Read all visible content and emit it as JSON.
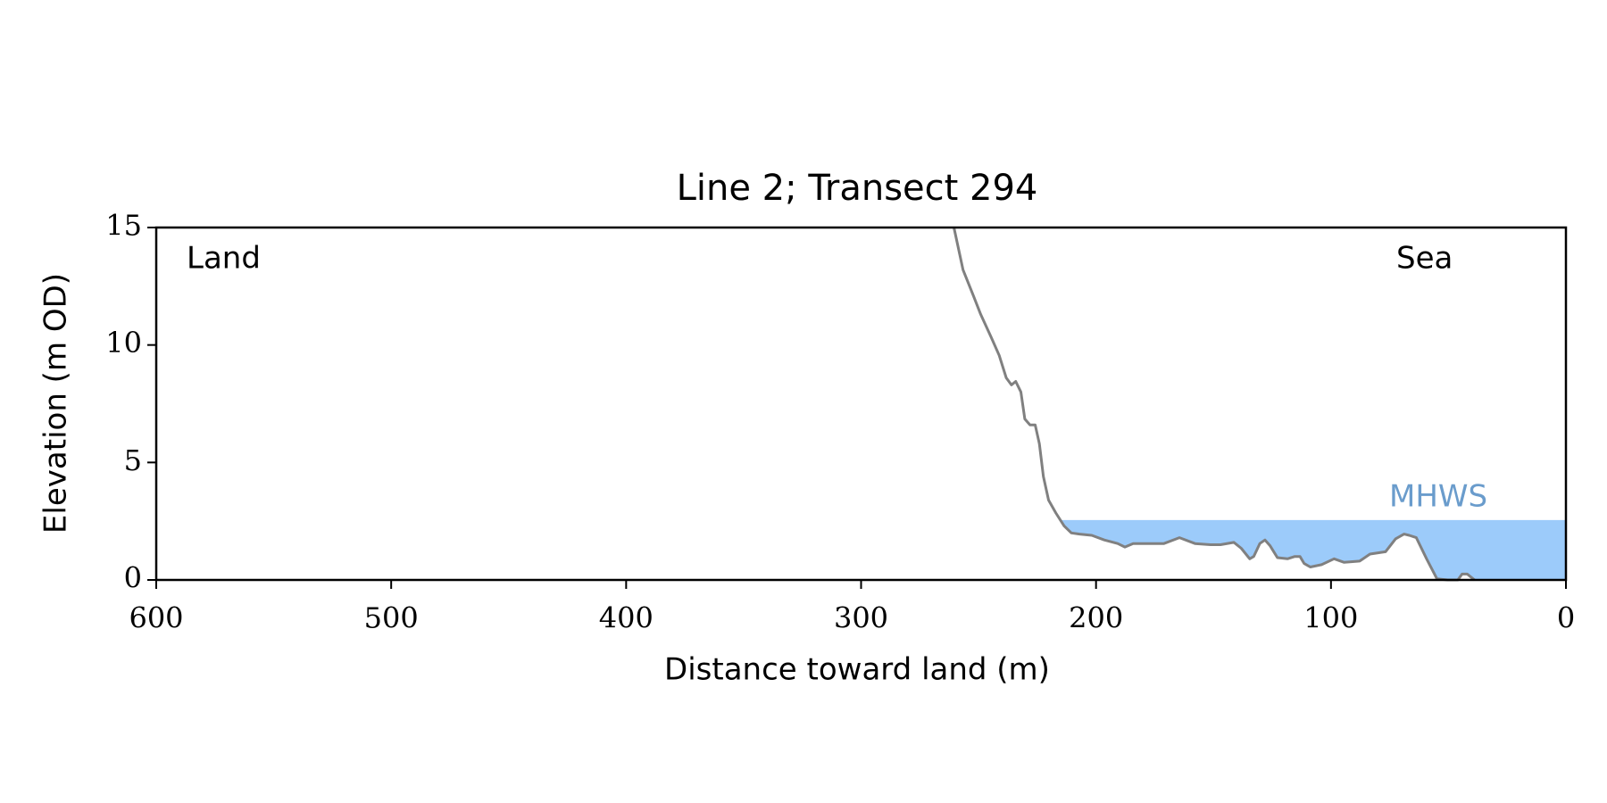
{
  "chart_data": {
    "type": "line",
    "title": "Line 2; Transect 294",
    "xlabel": "Distance toward land (m)",
    "ylabel": "Elevation (m OD)",
    "annotations": [
      "Land",
      "Sea"
    ],
    "mhws": 2.55,
    "mhws_label": "MHWS",
    "mhws_color": "#9ccbfa",
    "mhws_label_color": "#6a9ccc",
    "xlim": [
      600,
      0
    ],
    "ylim": [
      0,
      15
    ],
    "xticks": [
      600,
      500,
      400,
      300,
      200,
      100,
      0
    ],
    "yticks": [
      0,
      5,
      10,
      15
    ],
    "series": [
      {
        "color": "#808080",
        "x": [
          260.5,
          256.6,
          252.2,
          249.1,
          244.7,
          241.2,
          238.2,
          236.0,
          234.2,
          232.0,
          230.3,
          228.1,
          225.9,
          224.1,
          222.4,
          220.2,
          217.1,
          213.6,
          210.5,
          207.0,
          201.8,
          196.5,
          190.8,
          187.7,
          184.2,
          177.6,
          171.1,
          164.5,
          157.9,
          151.3,
          147.0,
          141.3,
          138.2,
          134.6,
          132.9,
          130.3,
          128.1,
          125.9,
          122.8,
          118.5,
          115.4,
          113.2,
          111.4,
          108.8,
          104.0,
          98.7,
          94.4,
          87.8,
          83.4,
          76.8,
          72.5,
          68.9,
          66.7,
          63.7,
          59.3,
          54.9,
          50.4,
          46.0,
          44.2,
          42.0,
          38.9
        ],
        "values": [
          15,
          13.2,
          12.1,
          11.3,
          10.35,
          9.56,
          8.6,
          8.3,
          8.45,
          8.0,
          6.85,
          6.6,
          6.6,
          5.8,
          4.4,
          3.4,
          2.85,
          2.3,
          2.0,
          1.95,
          1.9,
          1.7,
          1.55,
          1.4,
          1.55,
          1.55,
          1.55,
          1.8,
          1.55,
          1.5,
          1.5,
          1.6,
          1.35,
          0.9,
          1.0,
          1.55,
          1.7,
          1.45,
          0.95,
          0.9,
          1.0,
          1.0,
          0.7,
          0.55,
          0.65,
          0.9,
          0.75,
          0.8,
          1.1,
          1.2,
          1.75,
          1.95,
          1.9,
          1.8,
          0.9,
          0.05,
          0,
          0,
          0.25,
          0.25,
          0
        ]
      }
    ]
  }
}
